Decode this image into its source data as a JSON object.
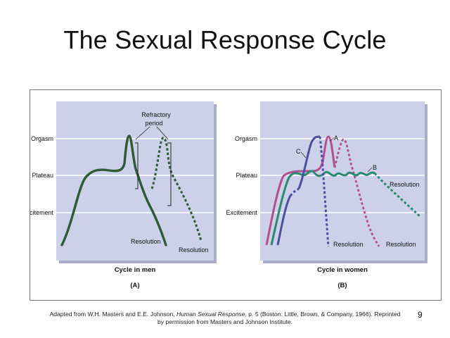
{
  "slide": {
    "title": "The Sexual Response Cycle",
    "number": "9"
  },
  "citation": {
    "line1_pre": "Adapted from W.H. Masters and E.E. Johnson, ",
    "book_title": "Human Sexual Response",
    "line1_post": ", p. 5 (Boston: Little, Brown, & Company, 1966).  Reprinted",
    "line2": "by permission from Masters and Johnson Institute."
  },
  "colors": {
    "panel_bg": "#ccd0e8",
    "men_curve": "#2e5a35",
    "woman_a": "#b0508f",
    "woman_b": "#2a8a6e",
    "woman_c": "#4b4fa0",
    "gridline": "#ffffff"
  },
  "panel_men": {
    "y_labels": [
      "Orgasm",
      "Plateau",
      "Excitement"
    ],
    "refractory_label_line1": "Refractory",
    "refractory_label_line2": "period",
    "resolution_label_1": "Resolution",
    "resolution_label_2": "Resolution",
    "x_title": "Cycle in men",
    "letter": "(A)"
  },
  "panel_women": {
    "y_labels": [
      "Orgasm",
      "Plateau",
      "Excitement"
    ],
    "curve_label_a": "A",
    "curve_label_b": "B",
    "curve_label_c": "C",
    "resolution_label_a": "Resolution",
    "resolution_label_b": "Resolution",
    "resolution_label_c": "Resolution",
    "x_title": "Cycle in women",
    "letter": "(B)"
  }
}
